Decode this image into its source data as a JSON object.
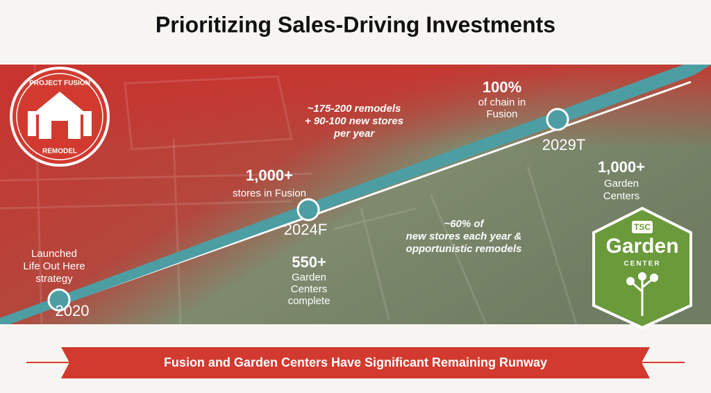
{
  "header": {
    "title": "Prioritizing Sales-Driving Investments"
  },
  "timeline": [
    {
      "year": "2020",
      "lines": [
        "Launched",
        "Life Out Here",
        "strategy"
      ]
    },
    {
      "year": "2024F",
      "figure": "1,000+",
      "lines": [
        "stores in Fusion"
      ]
    },
    {
      "year": "2029T",
      "figure": "100%",
      "lines": [
        "of chain in",
        "Fusion"
      ]
    }
  ],
  "annotations": {
    "remodel_rate": [
      "~175-200 remodels",
      "+ 90-100 new stores",
      "per year"
    ],
    "garden_rate": [
      "~60% of",
      "new stores each year &",
      "opportunistic remodels"
    ],
    "garden_complete": {
      "figure": "550+",
      "lines": [
        "Garden",
        "Centers",
        "complete"
      ]
    },
    "garden_target": {
      "figure": "1,000+",
      "lines": [
        "Garden",
        "Centers"
      ]
    }
  },
  "badges": {
    "fusion": {
      "top": "PROJECT FUSION",
      "bottom": "REMODEL"
    },
    "garden": {
      "logo": "TSC",
      "name": "Garden",
      "sub": "CENTER"
    }
  },
  "footer": {
    "banner": "Fusion and Garden Centers Have Significant Remaining Runway"
  }
}
